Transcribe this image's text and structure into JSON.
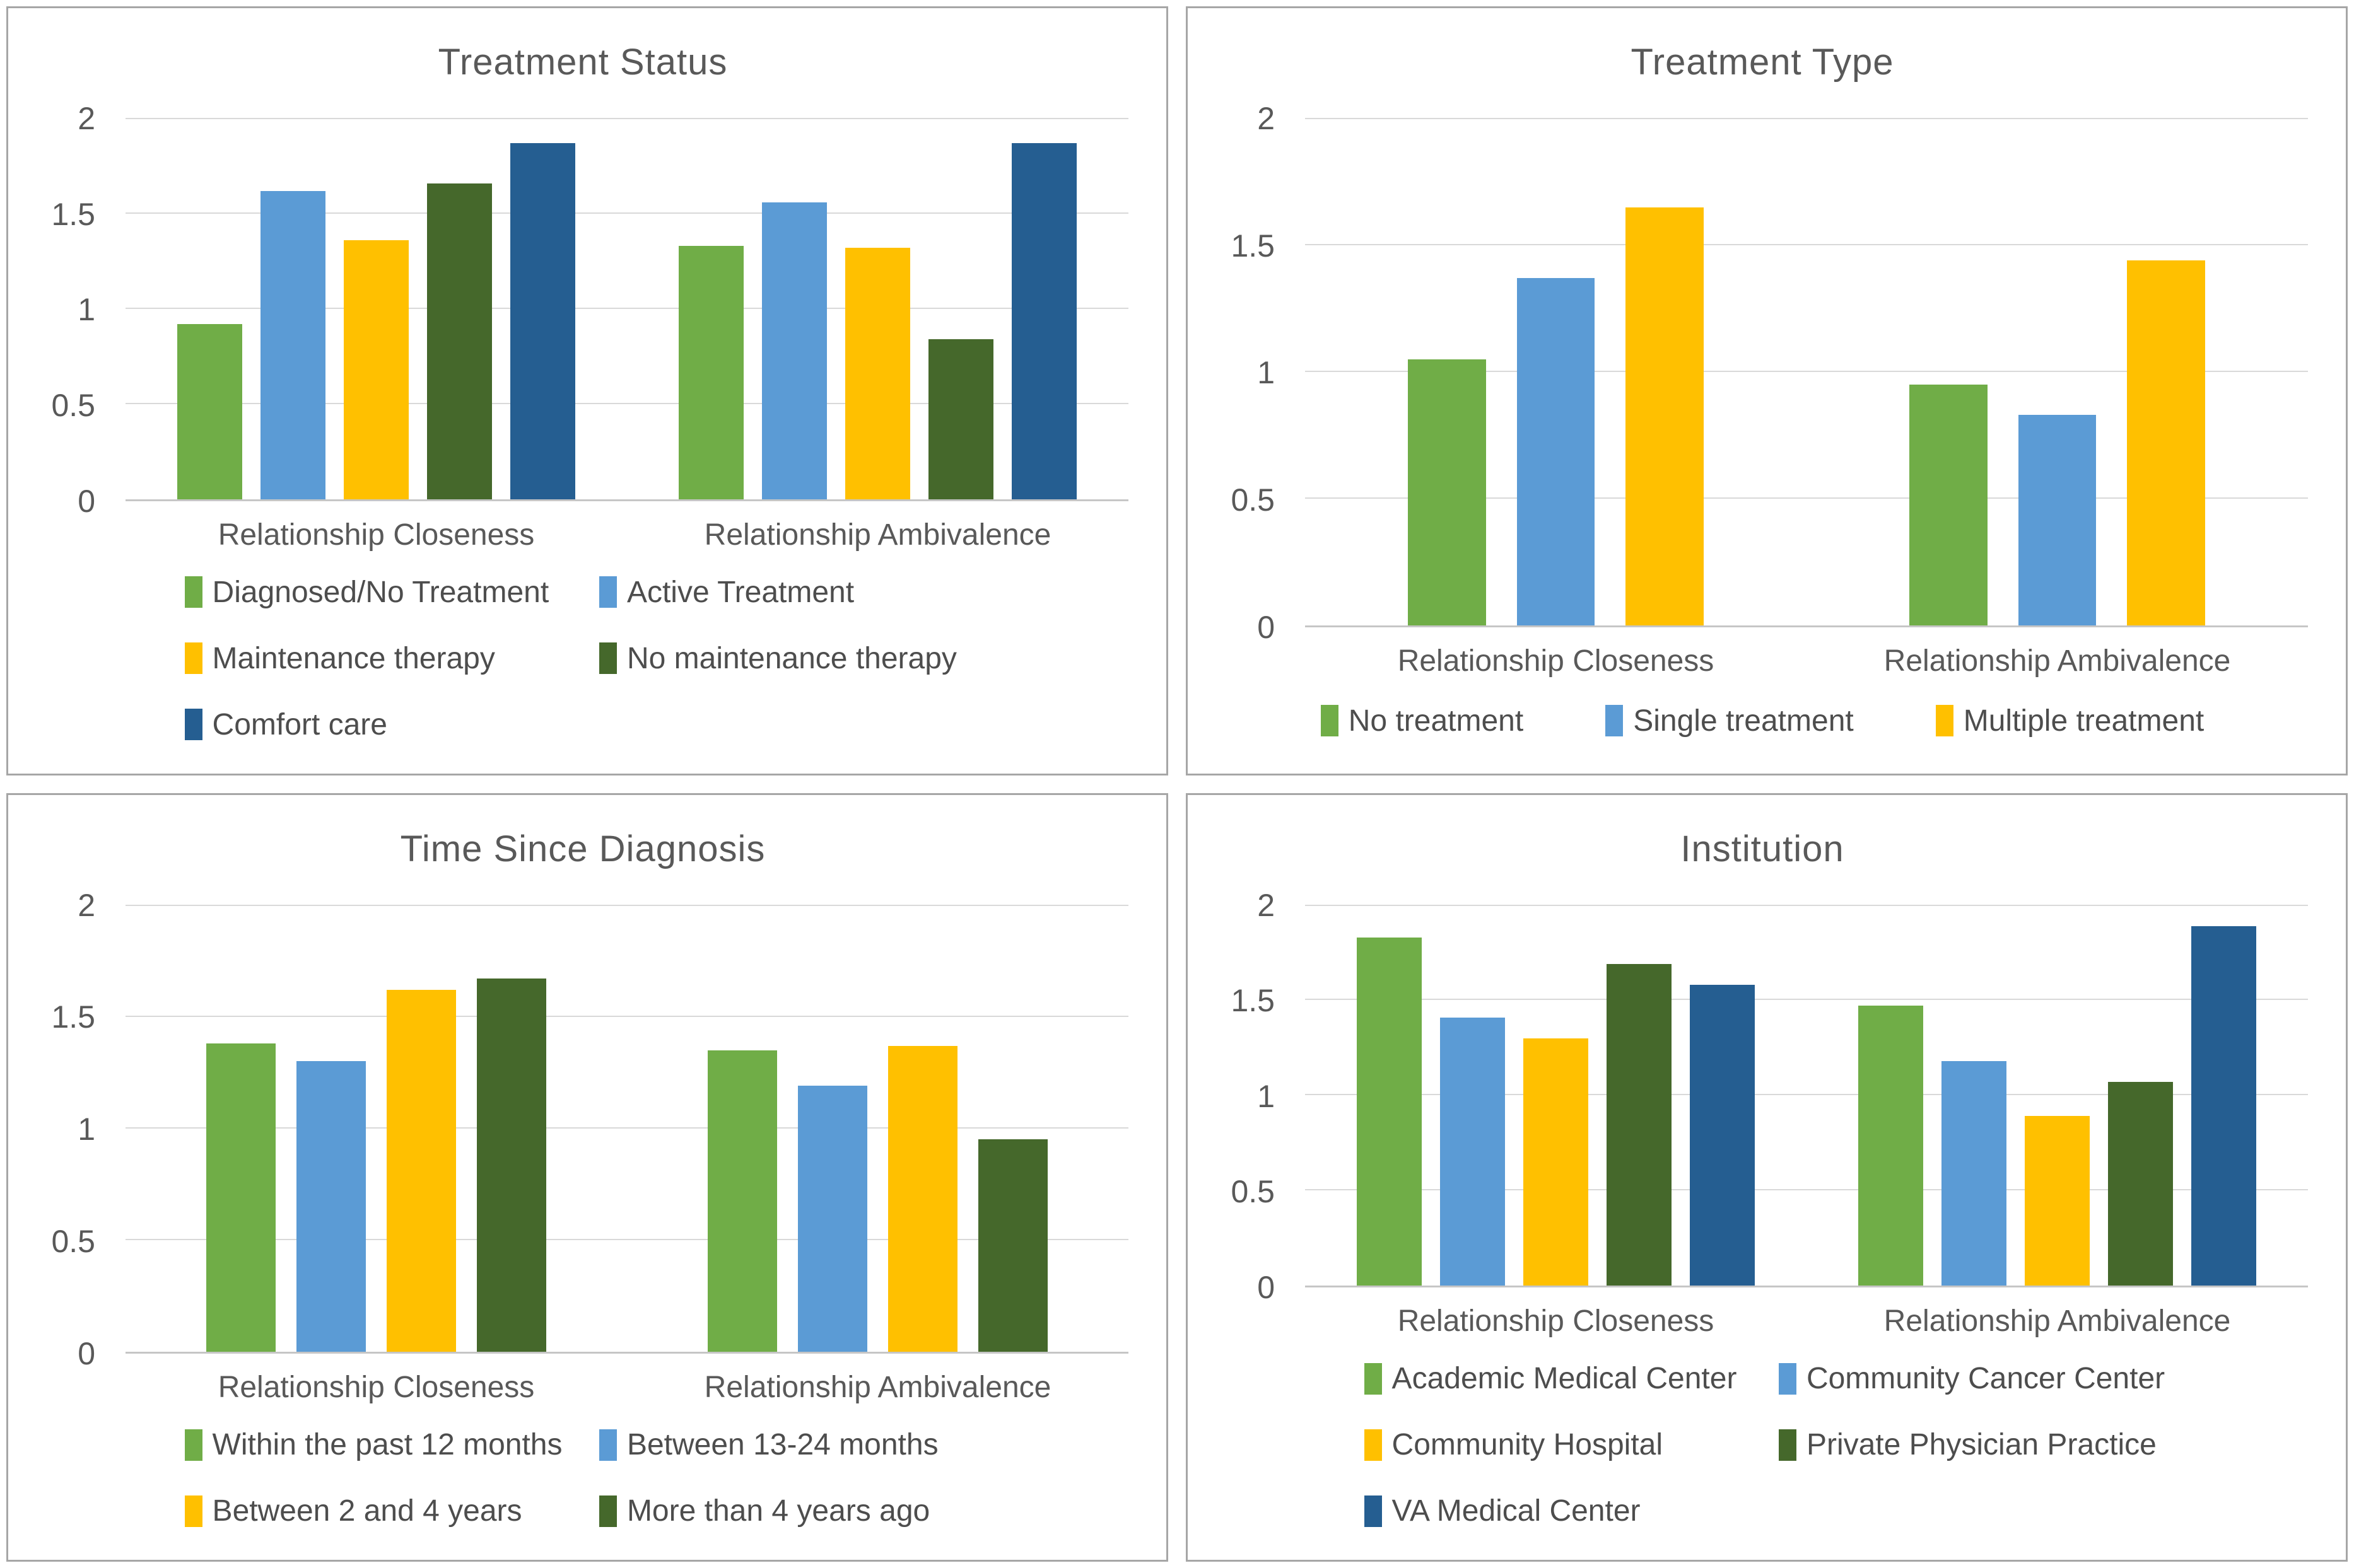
{
  "page": {
    "background": "#FFFFFF",
    "panel_border_color": "#A6A6A6",
    "gridline_color": "#D9D9D9",
    "text_color": "#595959"
  },
  "chart_data": [
    {
      "type": "bar",
      "title": "Treatment Status",
      "categories": [
        "Relationship Closeness",
        "Relationship Ambivalence"
      ],
      "y_axis": {
        "min": 0,
        "max": 2,
        "ticks": [
          0,
          0.5,
          1,
          1.5,
          2
        ],
        "tick_labels": [
          "0",
          "0.5",
          "1",
          "1.5",
          "2"
        ],
        "grid": true
      },
      "legend_position": "bottom",
      "series": [
        {
          "label": "Diagnosed/No Treatment",
          "color": "#70AD47",
          "values": [
            0.92,
            1.33
          ]
        },
        {
          "label": "Active Treatment",
          "color": "#5B9BD5",
          "values": [
            1.62,
            1.56
          ]
        },
        {
          "label": "Maintenance therapy",
          "color": "#FFC000",
          "values": [
            1.36,
            1.32
          ]
        },
        {
          "label": "No maintenance therapy",
          "color": "#45682B",
          "values": [
            1.66,
            0.84
          ]
        },
        {
          "label": "Comfort care",
          "color": "#255E91",
          "values": [
            1.87,
            1.87
          ]
        }
      ]
    },
    {
      "type": "bar",
      "title": "Treatment Type",
      "categories": [
        "Relationship Closeness",
        "Relationship Ambivalence"
      ],
      "y_axis": {
        "min": 0,
        "max": 2,
        "ticks": [
          0,
          0.5,
          1,
          1.5,
          2
        ],
        "tick_labels": [
          "0",
          "0.5",
          "1",
          "1.5",
          "2"
        ],
        "grid": true
      },
      "legend_position": "bottom",
      "series": [
        {
          "label": "No treatment",
          "color": "#70AD47",
          "values": [
            1.05,
            0.95
          ]
        },
        {
          "label": "Single treatment",
          "color": "#5B9BD5",
          "values": [
            1.37,
            0.83
          ]
        },
        {
          "label": "Multiple treatment",
          "color": "#FFC000",
          "values": [
            1.65,
            1.44
          ]
        }
      ]
    },
    {
      "type": "bar",
      "title": "Time Since Diagnosis",
      "categories": [
        "Relationship Closeness",
        "Relationship Ambivalence"
      ],
      "y_axis": {
        "min": 0,
        "max": 2,
        "ticks": [
          0,
          0.5,
          1,
          1.5,
          2
        ],
        "tick_labels": [
          "0",
          "0.5",
          "1",
          "1.5",
          "2"
        ],
        "grid": true
      },
      "legend_position": "bottom",
      "series": [
        {
          "label": "Within the past 12 months",
          "color": "#70AD47",
          "values": [
            1.38,
            1.35
          ]
        },
        {
          "label": "Between 13-24 months",
          "color": "#5B9BD5",
          "values": [
            1.3,
            1.19
          ]
        },
        {
          "label": "Between 2 and 4 years",
          "color": "#FFC000",
          "values": [
            1.62,
            1.37
          ]
        },
        {
          "label": "More than 4 years ago",
          "color": "#45682B",
          "values": [
            1.67,
            0.95
          ]
        }
      ]
    },
    {
      "type": "bar",
      "title": "Institution",
      "categories": [
        "Relationship Closeness",
        "Relationship Ambivalence"
      ],
      "y_axis": {
        "min": 0,
        "max": 2,
        "ticks": [
          0,
          0.5,
          1,
          1.5,
          2
        ],
        "tick_labels": [
          "0",
          "0.5",
          "1",
          "1.5",
          "2"
        ],
        "grid": true
      },
      "legend_position": "bottom",
      "series": [
        {
          "label": "Academic Medical Center",
          "color": "#70AD47",
          "values": [
            1.83,
            1.47
          ]
        },
        {
          "label": "Community Cancer Center",
          "color": "#5B9BD5",
          "values": [
            1.41,
            1.18
          ]
        },
        {
          "label": "Community Hospital",
          "color": "#FFC000",
          "values": [
            1.3,
            0.89
          ]
        },
        {
          "label": "Private Physician Practice",
          "color": "#45682B",
          "values": [
            1.69,
            1.07
          ]
        },
        {
          "label": "VA Medical Center",
          "color": "#255E91",
          "values": [
            1.58,
            1.89
          ]
        }
      ]
    }
  ]
}
